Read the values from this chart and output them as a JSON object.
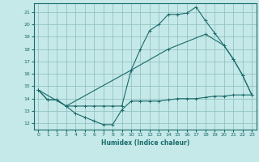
{
  "xlabel": "Humidex (Indice chaleur)",
  "bg_color": "#c5e8e8",
  "grid_color": "#8bbcbc",
  "line_color": "#1a6b6b",
  "xlim": [
    -0.5,
    23.5
  ],
  "ylim": [
    11.5,
    21.7
  ],
  "xticks": [
    0,
    1,
    2,
    3,
    4,
    5,
    6,
    7,
    8,
    9,
    10,
    11,
    12,
    13,
    14,
    15,
    16,
    17,
    18,
    19,
    20,
    21,
    22,
    23
  ],
  "yticks": [
    12,
    13,
    14,
    15,
    16,
    17,
    18,
    19,
    20,
    21
  ],
  "line1_x": [
    0,
    1,
    2,
    3,
    4,
    5,
    6,
    7,
    8,
    9,
    10,
    11,
    12,
    13,
    14,
    15,
    16,
    17,
    18,
    19,
    20,
    21,
    22,
    23
  ],
  "line1_y": [
    14.7,
    13.9,
    13.9,
    13.4,
    12.8,
    12.5,
    12.2,
    11.9,
    11.9,
    13.1,
    13.8,
    13.8,
    13.8,
    13.8,
    13.9,
    14.0,
    14.0,
    14.0,
    14.1,
    14.2,
    14.2,
    14.3,
    14.3,
    14.3
  ],
  "line2_x": [
    0,
    1,
    2,
    3,
    4,
    5,
    6,
    7,
    8,
    9,
    10,
    11,
    12,
    13,
    14,
    15,
    16,
    17,
    18,
    19,
    20,
    21,
    22,
    23
  ],
  "line2_y": [
    14.7,
    13.9,
    13.9,
    13.4,
    13.4,
    13.4,
    13.4,
    13.4,
    13.4,
    13.4,
    16.3,
    18.0,
    19.5,
    20.0,
    20.8,
    20.8,
    20.9,
    21.4,
    20.3,
    19.3,
    18.3,
    17.2,
    15.9,
    14.3
  ],
  "line3_x": [
    0,
    3,
    10,
    14,
    18,
    20,
    21,
    22,
    23
  ],
  "line3_y": [
    14.7,
    13.4,
    16.3,
    18.0,
    19.2,
    18.3,
    17.2,
    15.9,
    14.3
  ]
}
